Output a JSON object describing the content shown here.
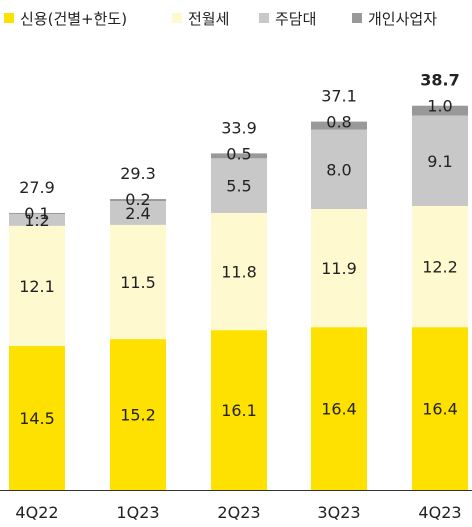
{
  "chart_data": {
    "type": "bar",
    "stacked": true,
    "categories": [
      "4Q22",
      "1Q23",
      "2Q23",
      "3Q23",
      "4Q23"
    ],
    "series": [
      {
        "name": "신용(건별+한도)",
        "color": "#FFE100",
        "values": [
          "14.5",
          "15.2",
          "16.1",
          "16.4",
          "16.4"
        ]
      },
      {
        "name": "전월세",
        "color": "#FFF9D0",
        "values": [
          "12.1",
          "11.5",
          "11.8",
          "11.9",
          "12.2"
        ]
      },
      {
        "name": "주담대",
        "color": "#C8C8C8",
        "values": [
          "1.2",
          "2.4",
          "5.5",
          "8.0",
          "9.1"
        ]
      },
      {
        "name": "개인사업자",
        "color": "#999999",
        "values": [
          "0.1",
          "0.2",
          "0.5",
          "0.8",
          "1.0"
        ]
      }
    ],
    "totals": [
      "27.9",
      "29.3",
      "33.9",
      "37.1",
      "38.7"
    ],
    "highlight_last_total": true,
    "legend_position": "top",
    "grid": false
  }
}
